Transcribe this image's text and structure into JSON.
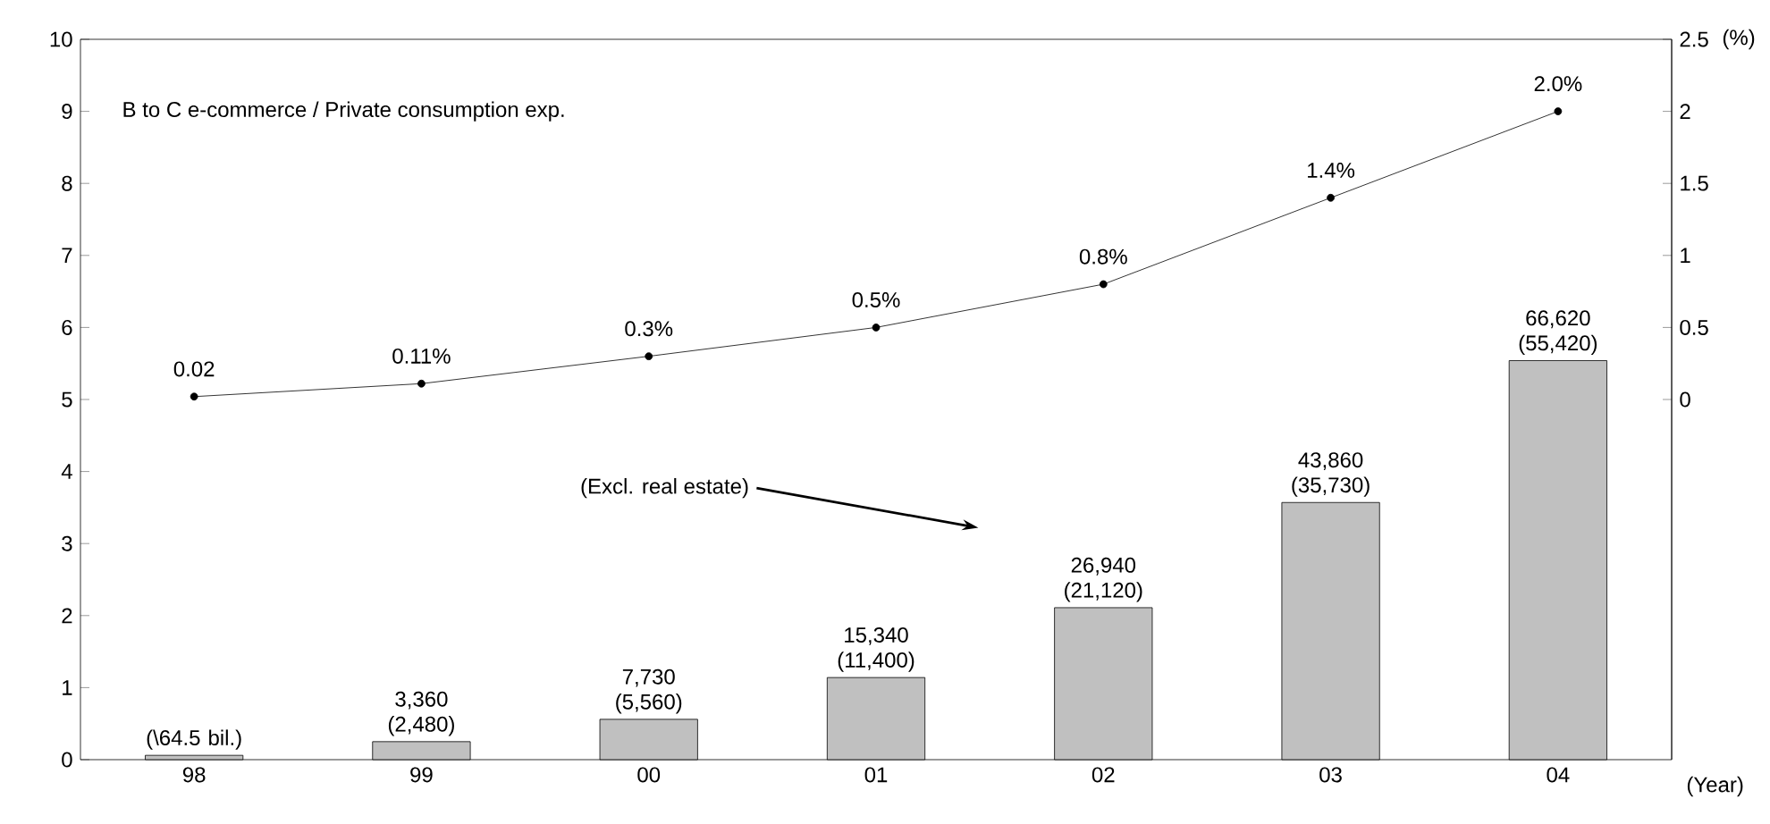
{
  "chart_data": {
    "type": "bar",
    "categories": [
      "98",
      "99",
      "00",
      "01",
      "02",
      "03",
      "04"
    ],
    "xlabel": "(Year)",
    "y2label": "(%)",
    "ylim": [
      0,
      10
    ],
    "yticks": [
      0,
      1,
      2,
      3,
      4,
      5,
      6,
      7,
      8,
      9,
      10
    ],
    "y2lim": [
      -2.5,
      2.5
    ],
    "y2ticks": [
      0,
      0.5,
      1,
      1.5,
      2,
      2.5
    ],
    "annotations": [
      "B to C e-commerce / Private consumption exp.",
      "(Excl. real estate)",
      {
        "text": "(\\64.5 bil.)",
        "x": "98",
        "y": 0.06
      },
      {
        "text": "3,360 (2,480)",
        "x": "99",
        "y": 0.25
      },
      {
        "text": "7,730 (5,560)",
        "x": "00",
        "y": 0.56
      },
      {
        "text": "15,340 (11,400)",
        "x": "01",
        "y": 1.14
      },
      {
        "text": "26,940 (21,120)",
        "x": "02",
        "y": 2.11
      },
      {
        "text": "43,860 (35,730)",
        "x": "03",
        "y": 3.57
      },
      {
        "text": "66,620 (55,420)",
        "x": "04",
        "y": 5.54
      }
    ],
    "series": [
      {
        "color": "#c0c0c0",
        "values": [
          0.06,
          0.25,
          0.56,
          1.14,
          2.11,
          3.57,
          5.54
        ]
      },
      {
        "type": "line",
        "axis": "y2",
        "color": "#000000",
        "marker": "circle",
        "values": [
          0.02,
          0.11,
          0.3,
          0.5,
          0.8,
          1.4,
          2.0
        ],
        "value_labels": [
          "0.02",
          "0.11%",
          "0.3%",
          "0.5%",
          "0.8%",
          "1.4%",
          "2.0%"
        ]
      }
    ]
  }
}
